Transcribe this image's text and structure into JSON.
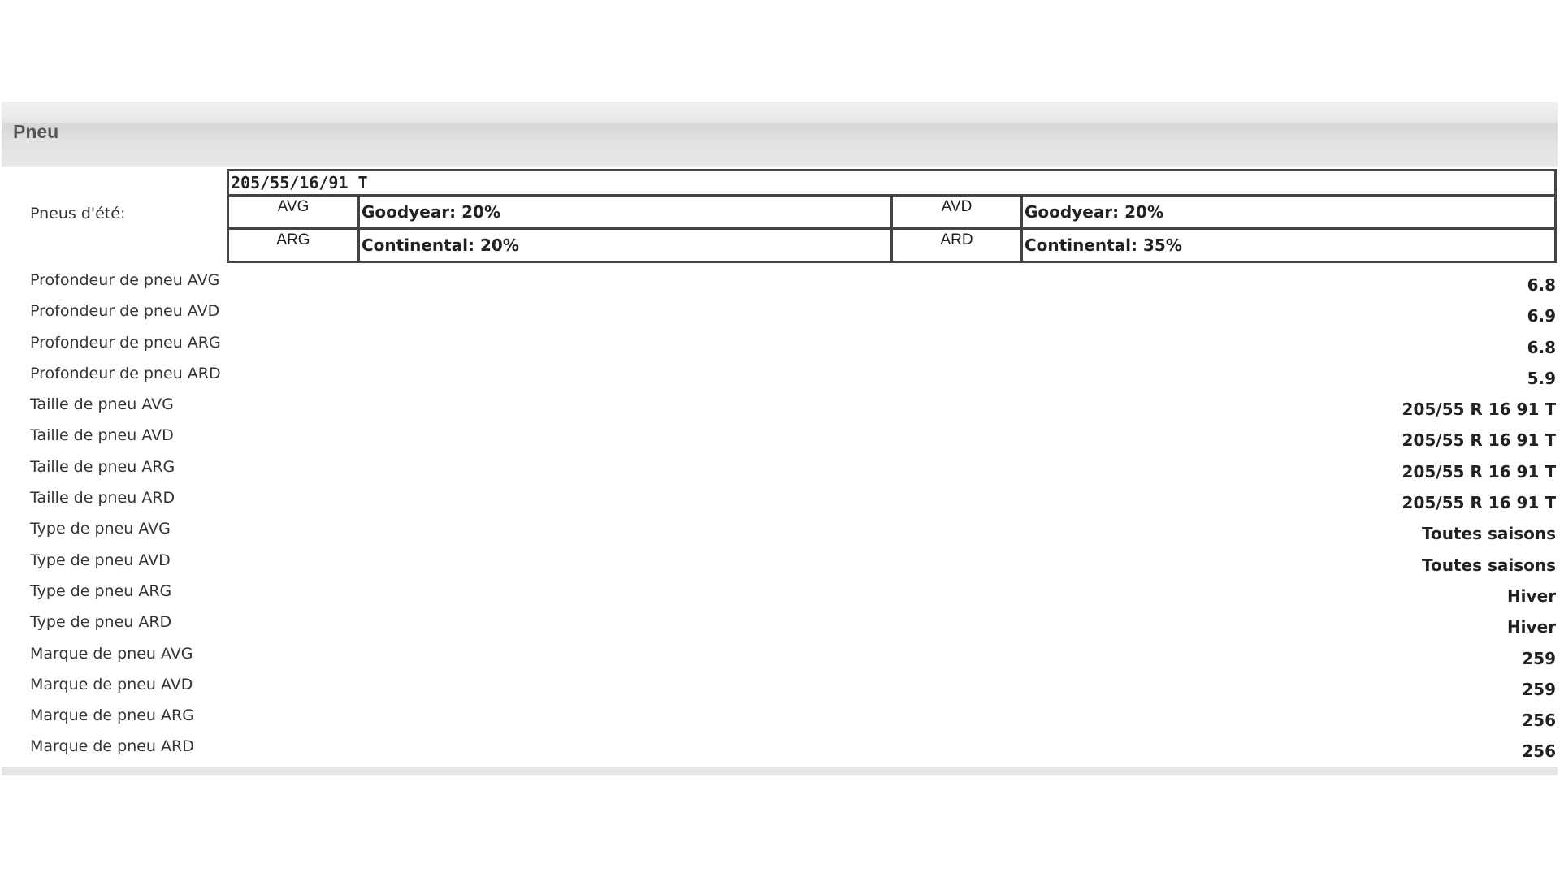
{
  "panel": {
    "title": "Pneu"
  },
  "summer_tires": {
    "label": "Pneus d'été:",
    "size": "205/55/16/91 T",
    "positions": [
      {
        "pos": "AVG",
        "brand": "Goodyear: 20%"
      },
      {
        "pos": "AVD",
        "brand": "Goodyear: 20%"
      },
      {
        "pos": "ARG",
        "brand": "Continental: 20%"
      },
      {
        "pos": "ARD",
        "brand": "Continental: 35%"
      }
    ]
  },
  "rows": [
    {
      "label": "Profondeur de pneu AVG",
      "value": "6.8"
    },
    {
      "label": "Profondeur de pneu AVD",
      "value": "6.9"
    },
    {
      "label": "Profondeur de pneu ARG",
      "value": "6.8"
    },
    {
      "label": "Profondeur de pneu ARD",
      "value": "5.9"
    },
    {
      "label": "Taille de pneu AVG",
      "value": "205/55 R 16 91 T"
    },
    {
      "label": "Taille de pneu AVD",
      "value": "205/55 R 16 91 T"
    },
    {
      "label": "Taille de pneu ARG",
      "value": "205/55 R 16 91 T"
    },
    {
      "label": "Taille de pneu ARD",
      "value": "205/55 R 16 91 T"
    },
    {
      "label": "Type de pneu AVG",
      "value": "Toutes saisons"
    },
    {
      "label": "Type de pneu AVD",
      "value": "Toutes saisons"
    },
    {
      "label": "Type de pneu ARG",
      "value": "Hiver"
    },
    {
      "label": "Type de pneu ARD",
      "value": "Hiver"
    },
    {
      "label": "Marque de pneu AVG",
      "value": "259"
    },
    {
      "label": "Marque de pneu AVD",
      "value": "259"
    },
    {
      "label": "Marque de pneu ARG",
      "value": "256"
    },
    {
      "label": "Marque de pneu ARD",
      "value": "256"
    }
  ]
}
